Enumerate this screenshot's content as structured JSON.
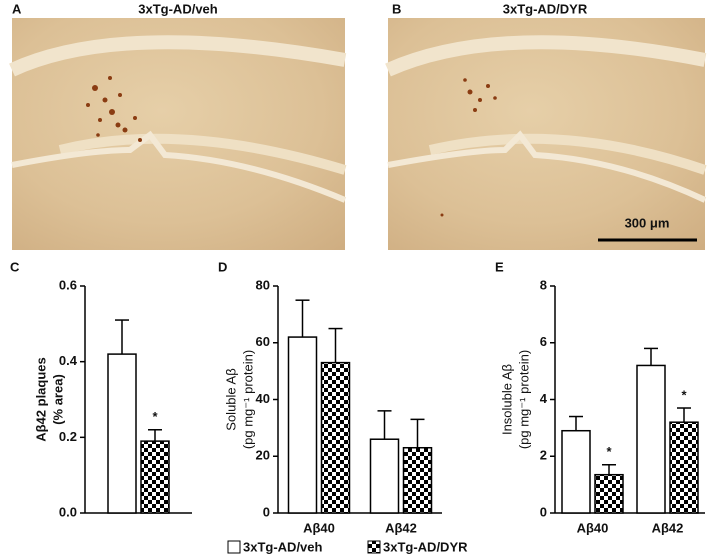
{
  "images": [
    {
      "panel": "A",
      "title": "3xTg-AD/veh"
    },
    {
      "panel": "B",
      "title": "3xTg-AD/DYR",
      "scale_bar": "300 μm"
    }
  ],
  "chart_data": [
    {
      "type": "bar",
      "panel": "C",
      "ylabel": [
        "Aβ42 plaques",
        "(% area)"
      ],
      "categories": [
        null
      ],
      "series": [
        {
          "name": "3xTg-AD/veh",
          "pattern": "open",
          "values": [
            0.42
          ],
          "errors": [
            0.09
          ]
        },
        {
          "name": "3xTg-AD/DYR",
          "pattern": "checkered",
          "values": [
            0.19
          ],
          "errors": [
            0.03
          ]
        }
      ],
      "ylim": [
        0,
        0.6
      ],
      "yticks": [
        {
          "value": 0,
          "label": "0.0"
        },
        0.2,
        0.4,
        0.6
      ],
      "annotations": [
        {
          "series": 1,
          "index": 0,
          "text": "*"
        }
      ]
    },
    {
      "type": "bar",
      "panel": "D",
      "ylabel": [
        "Soluble Aβ",
        "(pg mg⁻¹ protein)"
      ],
      "categories": [
        "Aβ40",
        "Aβ42"
      ],
      "series": [
        {
          "pattern": "open",
          "values": [
            62,
            26
          ],
          "errors": [
            13,
            10
          ]
        },
        {
          "pattern": "checkered",
          "values": [
            53,
            23
          ],
          "errors": [
            12,
            10
          ]
        }
      ],
      "ylim": [
        0,
        80
      ],
      "yticks": [
        0,
        20,
        40,
        60,
        80
      ],
      "annotations": []
    },
    {
      "type": "bar",
      "panel": "E",
      "ylabel": [
        "Insoluble Aβ",
        "(pg mg⁻¹ protein)"
      ],
      "categories": [
        "Aβ40",
        "Aβ42"
      ],
      "series": [
        {
          "pattern": "open",
          "values": [
            2.9,
            5.2
          ],
          "errors": [
            0.5,
            0.6
          ]
        },
        {
          "pattern": "checkered",
          "values": [
            1.35,
            3.2
          ],
          "errors": [
            0.35,
            0.5
          ]
        }
      ],
      "ylim": [
        0,
        8
      ],
      "yticks": [
        0,
        2,
        4,
        6,
        8
      ],
      "annotations": [
        {
          "series": 1,
          "index": 0,
          "text": "*"
        },
        {
          "series": 1,
          "index": 1,
          "text": "*"
        }
      ]
    }
  ]
}
